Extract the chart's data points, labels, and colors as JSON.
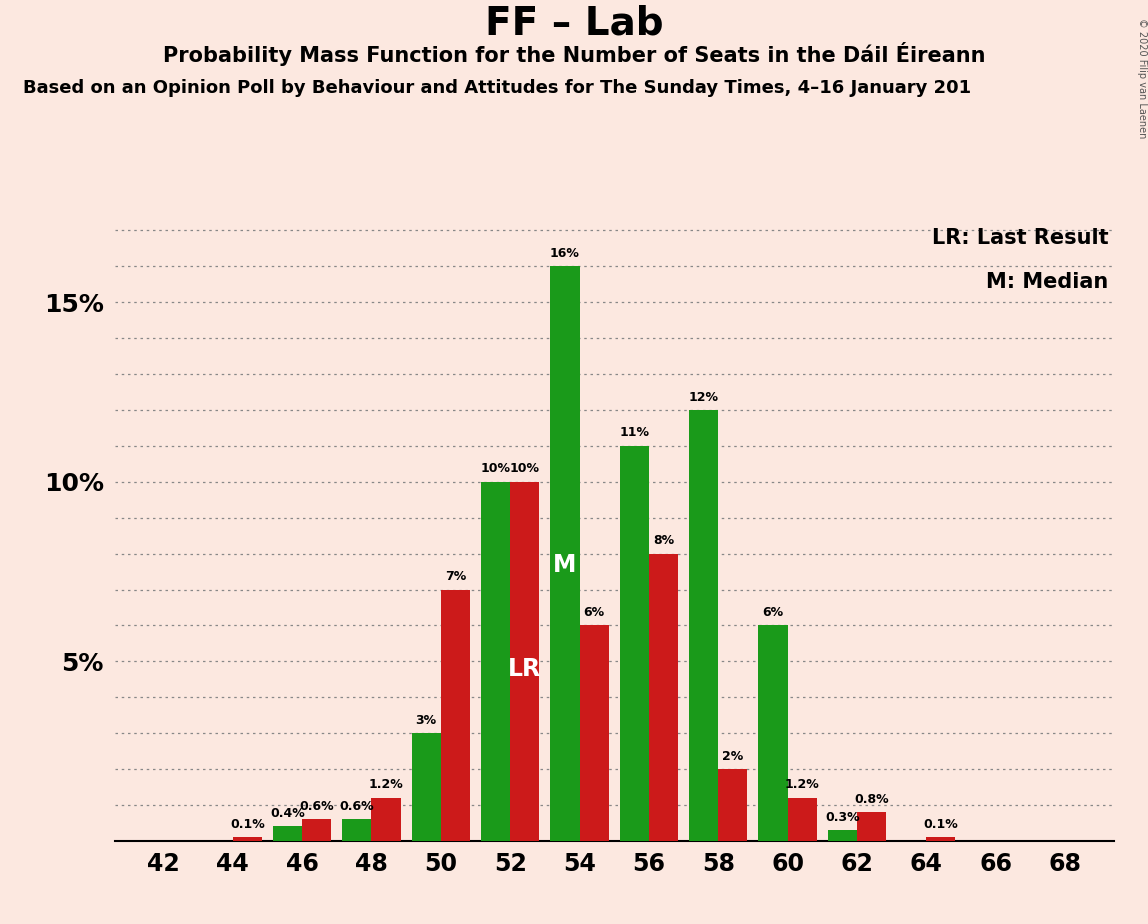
{
  "title": "FF – Lab",
  "subtitle": "Probability Mass Function for the Number of Seats in the Dáil Éireann",
  "subtitle2": "Based on an Opinion Poll by Behaviour and Attitudes for The Sunday Times, 4–16 January 201",
  "copyright": "© 2020 Filip van Laenen",
  "legend_lr": "LR: Last Result",
  "legend_m": "M: Median",
  "background_color": "#fce8e0",
  "bar_color_green": "#1a9a1a",
  "bar_color_red": "#cc1a1a",
  "seats": [
    42,
    44,
    46,
    48,
    50,
    52,
    54,
    56,
    58,
    60,
    62,
    64,
    66,
    68
  ],
  "green_values": [
    0.0,
    0.0,
    0.4,
    0.6,
    3.0,
    10.0,
    16.0,
    11.0,
    12.0,
    6.0,
    0.3,
    0.0,
    0.0,
    0.0
  ],
  "red_values": [
    0.0,
    0.1,
    0.6,
    1.2,
    7.0,
    10.0,
    6.0,
    8.0,
    2.0,
    1.2,
    0.8,
    0.1,
    0.0,
    0.0
  ],
  "green_labels": [
    "0%",
    "0%",
    "0.4%",
    "0.6%",
    "3%",
    "10%",
    "16%",
    "11%",
    "12%",
    "6%",
    "0.3%",
    "0%",
    "0%",
    "0%"
  ],
  "red_labels": [
    "0%",
    "0.1%",
    "0.6%",
    "1.2%",
    "7%",
    "10%",
    "6%",
    "8%",
    "2%",
    "1.2%",
    "0.8%",
    "0.1%",
    "0%",
    "0%"
  ],
  "median_seat": 54,
  "lr_seat": 52,
  "ylim": [
    0,
    17.5
  ],
  "bar_width": 0.42,
  "grid_lines": [
    1,
    2,
    3,
    4,
    5,
    6,
    7,
    8,
    9,
    10,
    11,
    12,
    13,
    14,
    15,
    16,
    17
  ],
  "ytick_positions": [
    5,
    10,
    15
  ],
  "ytick_labels": [
    "5%",
    "10%",
    "15%"
  ]
}
